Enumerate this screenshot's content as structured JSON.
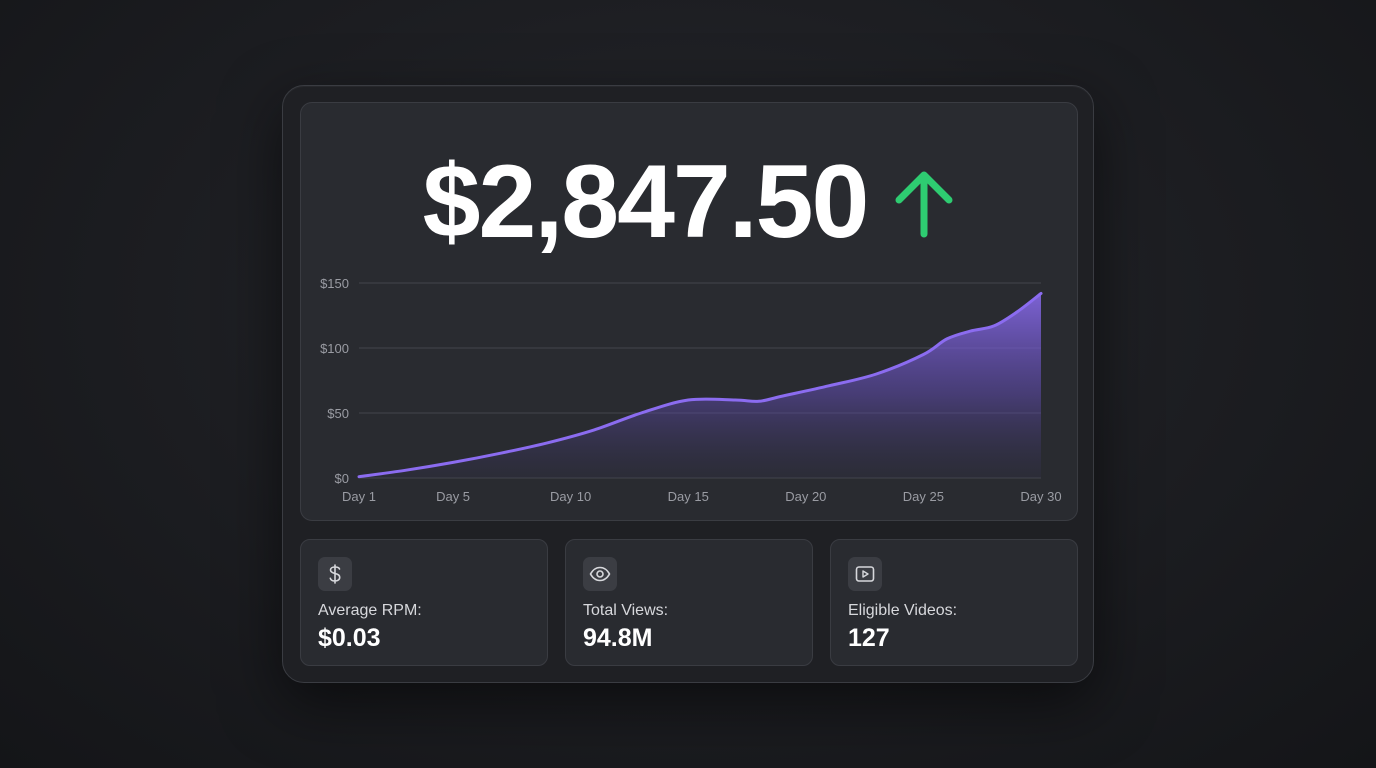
{
  "headline": {
    "amount": "$2,847.50",
    "trend_icon": "arrow-up-icon",
    "trend_color": "#2ecc71"
  },
  "chart_data": {
    "type": "area",
    "title": "",
    "xlabel": "",
    "ylabel": "",
    "x_tick_labels": [
      "Day 1",
      "Day 5",
      "Day 10",
      "Day 15",
      "Day 20",
      "Day 25",
      "Day 30"
    ],
    "x_ticks": [
      1,
      5,
      10,
      15,
      20,
      25,
      30
    ],
    "y_tick_labels": [
      "$0",
      "$50",
      "$100",
      "$150"
    ],
    "y_ticks": [
      0,
      50,
      100,
      150
    ],
    "xlim": [
      1,
      30
    ],
    "ylim": [
      0,
      150
    ],
    "grid": true,
    "color": "#8b6cf0",
    "series": [
      {
        "x": [
          1,
          3,
          5,
          7,
          9,
          11,
          13,
          15,
          17,
          18,
          19,
          21,
          23,
          25,
          26,
          27,
          28,
          29,
          30
        ],
        "values": [
          1,
          6,
          12,
          19,
          27,
          37,
          50,
          60,
          60,
          59,
          63,
          71,
          80,
          95,
          107,
          113,
          117,
          128,
          142
        ]
      }
    ]
  },
  "stats": [
    {
      "icon": "dollar-icon",
      "label": "Average RPM:",
      "value": "$0.03"
    },
    {
      "icon": "eye-icon",
      "label": "Total Views:",
      "value": "94.8M"
    },
    {
      "icon": "video-play-icon",
      "label": "Eligible Videos:",
      "value": "127"
    }
  ]
}
